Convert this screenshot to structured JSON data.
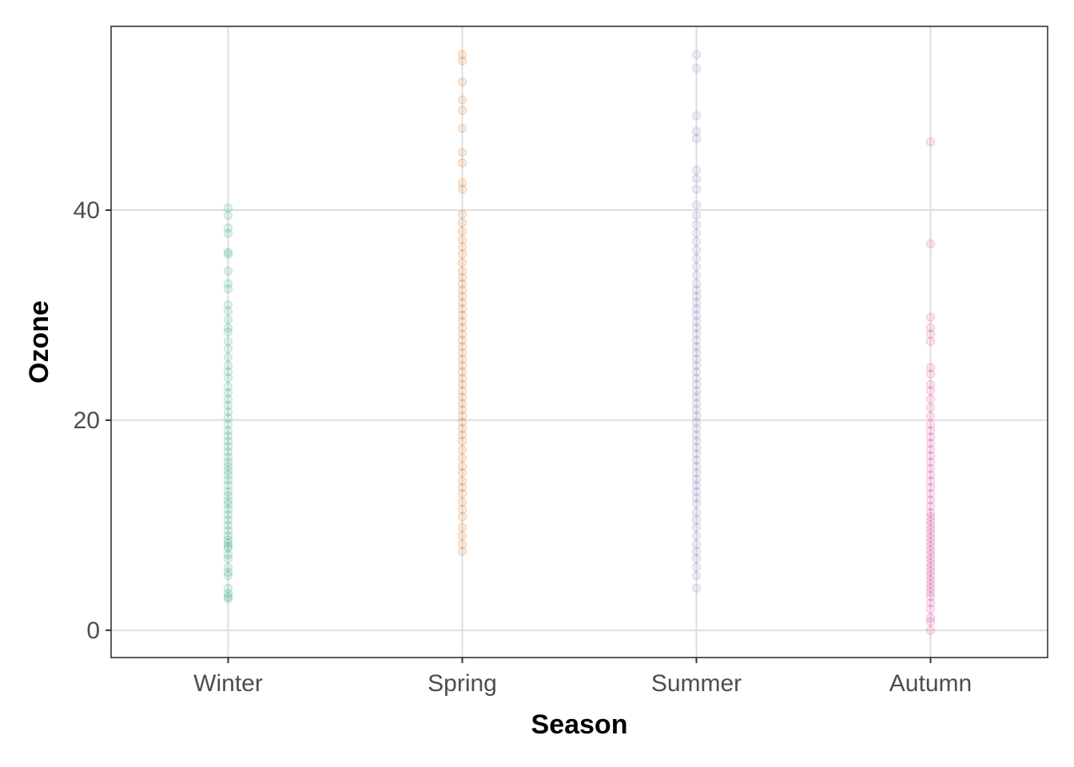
{
  "chart_data": {
    "type": "scatter",
    "title": "",
    "xlabel": "Season",
    "ylabel": "Ozone",
    "categories": [
      "Winter",
      "Spring",
      "Summer",
      "Autumn"
    ],
    "ylim": [
      -2.6,
      57.5
    ],
    "y_ticks": [
      0,
      20,
      40
    ],
    "grid": true,
    "legend": "none",
    "point_opacity": 0.12,
    "series": [
      {
        "category": "Winter",
        "color": "#1b9e77",
        "values": [
          3,
          3.2,
          3.5,
          4,
          5.2,
          5.5,
          6,
          6.8,
          7.2,
          7.8,
          8,
          8.3,
          8.6,
          9,
          9.5,
          10,
          10.5,
          11,
          11.5,
          12,
          12.3,
          12.8,
          13.2,
          13.8,
          14.3,
          14.8,
          15.2,
          15.6,
          16,
          16.5,
          17,
          17.5,
          18,
          18.5,
          19,
          19.6,
          20.2,
          20.8,
          21.4,
          22,
          22.6,
          23.2,
          24,
          24.6,
          25.2,
          26,
          26.8,
          27.5,
          28.4,
          28.8,
          29.6,
          30.4,
          31,
          32.5,
          33,
          34.2,
          35.8,
          36,
          37.8,
          38.3,
          39.5,
          40.2
        ]
      },
      {
        "category": "Spring",
        "color": "#d95f02",
        "values": [
          7.5,
          8.2,
          9,
          9.8,
          10.8,
          11.5,
          12.2,
          13,
          13.6,
          14.2,
          15,
          15.6,
          16.4,
          17.2,
          18,
          18.6,
          19.2,
          19.8,
          20.4,
          21,
          21.6,
          22.2,
          22.8,
          23.4,
          24,
          24.6,
          25.2,
          25.8,
          26.4,
          27,
          27.6,
          28.2,
          28.8,
          29.4,
          30,
          30.6,
          31.2,
          31.8,
          32.4,
          33,
          33.6,
          34.2,
          35,
          35.8,
          36.5,
          37.2,
          38,
          38.8,
          39.6,
          42,
          42.6,
          44.5,
          45.5,
          47.8,
          49.5,
          50.5,
          52.2,
          54.2,
          54.8
        ]
      },
      {
        "category": "Summer",
        "color": "#7570b3",
        "values": [
          4,
          5.2,
          6,
          6.8,
          7.5,
          8.2,
          9,
          9.8,
          10.5,
          11.2,
          12,
          12.6,
          13.2,
          13.8,
          14.4,
          15,
          15.6,
          16.2,
          16.8,
          17.4,
          18,
          18.6,
          19.2,
          19.8,
          20.4,
          21,
          21.6,
          22.2,
          22.8,
          23.4,
          24,
          24.6,
          25.2,
          25.8,
          26.4,
          27,
          27.6,
          28.2,
          28.8,
          29.4,
          30,
          30.6,
          31.2,
          31.8,
          32.4,
          33,
          33.8,
          34.6,
          35.4,
          36.2,
          37,
          37.8,
          38.6,
          39.5,
          40.5,
          42,
          43,
          43.8,
          46.8,
          47.5,
          49,
          53.5,
          54.8
        ]
      },
      {
        "category": "Autumn",
        "color": "#e7298a",
        "values": [
          0,
          0.8,
          1.2,
          2,
          2.6,
          3.2,
          3.6,
          4,
          4.4,
          4.8,
          5.2,
          5.6,
          6,
          6.4,
          6.8,
          7.2,
          7.6,
          8,
          8.4,
          8.8,
          9.2,
          9.6,
          10,
          10.4,
          10.8,
          11.2,
          11.8,
          12.4,
          13,
          13.6,
          14.2,
          14.8,
          15.4,
          16,
          16.6,
          17.2,
          17.8,
          18.4,
          19,
          19.6,
          20.4,
          21.2,
          22,
          22.8,
          23.4,
          24.4,
          25,
          27.5,
          28.2,
          28.8,
          29.8,
          36.8,
          46.5
        ]
      }
    ]
  }
}
